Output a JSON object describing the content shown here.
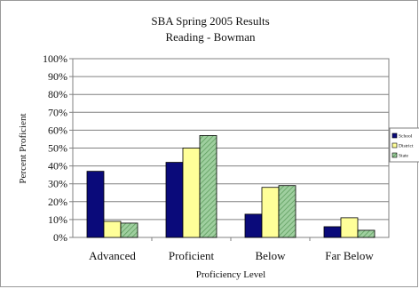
{
  "chart_data": {
    "type": "bar",
    "title": "SBA Spring 2005 Results",
    "subtitle": "Reading - Bowman",
    "xlabel": "Proficiency Level",
    "ylabel": "Percent Proficient",
    "categories": [
      "Advanced",
      "Proficient",
      "Below",
      "Far Below"
    ],
    "series": [
      {
        "name": "School",
        "values": [
          37,
          42,
          13,
          6
        ],
        "color": "#0a0a7a"
      },
      {
        "name": "District",
        "values": [
          9,
          50,
          28,
          11
        ],
        "color": "#ffff99"
      },
      {
        "name": "State",
        "values": [
          8,
          57,
          29,
          4
        ],
        "color": "#99cc99"
      }
    ],
    "ylim": [
      0,
      100
    ],
    "yticks": [
      "0%",
      "10%",
      "20%",
      "30%",
      "40%",
      "50%",
      "60%",
      "70%",
      "80%",
      "90%",
      "100%"
    ],
    "grid": true,
    "legend_position": "right"
  }
}
